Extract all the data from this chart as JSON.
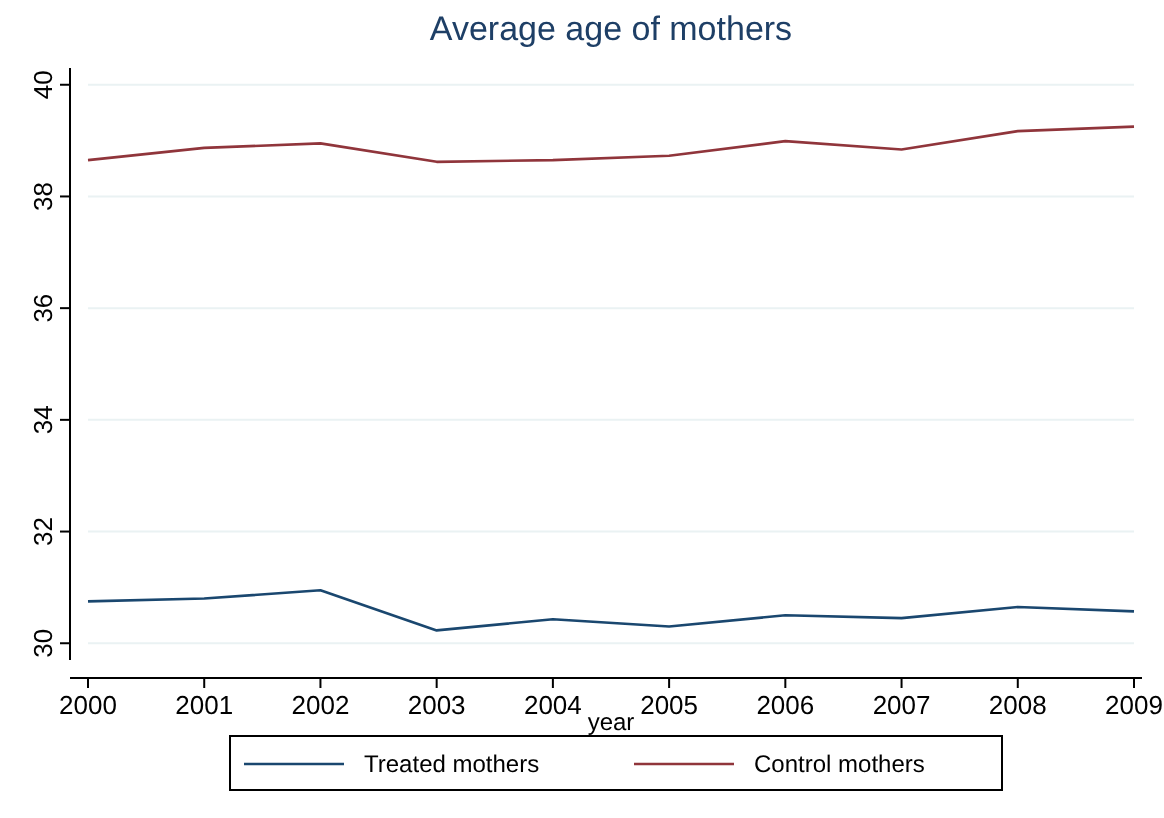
{
  "chart_data": {
    "type": "line",
    "title": "Average age of mothers",
    "xlabel": "year",
    "x": [
      2000,
      2001,
      2002,
      2003,
      2004,
      2005,
      2006,
      2007,
      2008,
      2009
    ],
    "xlim": [
      2000,
      2009
    ],
    "xticks": [
      2000,
      2001,
      2002,
      2003,
      2004,
      2005,
      2006,
      2007,
      2008,
      2009
    ],
    "ylim": [
      29.7,
      40.3
    ],
    "yticks": [
      30,
      32,
      34,
      36,
      38,
      40
    ],
    "grid": "y",
    "legend": "bottom",
    "series": [
      {
        "name": "Treated mothers",
        "color": "#1a476f",
        "values": [
          30.75,
          30.8,
          30.95,
          30.23,
          30.43,
          30.3,
          30.5,
          30.45,
          30.65,
          30.57
        ]
      },
      {
        "name": "Control mothers",
        "color": "#90353b",
        "values": [
          38.65,
          38.87,
          38.95,
          38.62,
          38.65,
          38.73,
          38.99,
          38.84,
          39.17,
          39.25
        ]
      }
    ]
  }
}
